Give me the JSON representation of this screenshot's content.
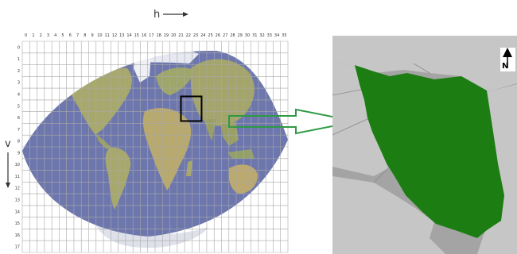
{
  "axes": {
    "h_label": "h",
    "v_label": "v",
    "columns": [
      "0",
      "1",
      "2",
      "3",
      "4",
      "5",
      "6",
      "7",
      "8",
      "9",
      "10",
      "11",
      "12",
      "13",
      "14",
      "15",
      "16",
      "17",
      "18",
      "19",
      "20",
      "21",
      "22",
      "23",
      "24",
      "25",
      "26",
      "27",
      "28",
      "29",
      "30",
      "31",
      "32",
      "33",
      "34",
      "35"
    ],
    "rows": [
      "0",
      "1",
      "2",
      "3",
      "4",
      "5",
      "6",
      "7",
      "8",
      "9",
      "10",
      "11",
      "12",
      "13",
      "14",
      "15",
      "16",
      "17"
    ]
  },
  "highlight": {
    "h": 22,
    "v": 5
  },
  "inset": {
    "north_label": "N"
  },
  "colors": {
    "ocean": "#6d77ad",
    "land": "#a7a86c",
    "grid": "#a9a9a9",
    "highlight_box": "#000000",
    "arrow": "#2f9a45",
    "country": "#1c7d12",
    "inset_land": "#c6c6c6",
    "inset_water": "#a4a4a4"
  }
}
